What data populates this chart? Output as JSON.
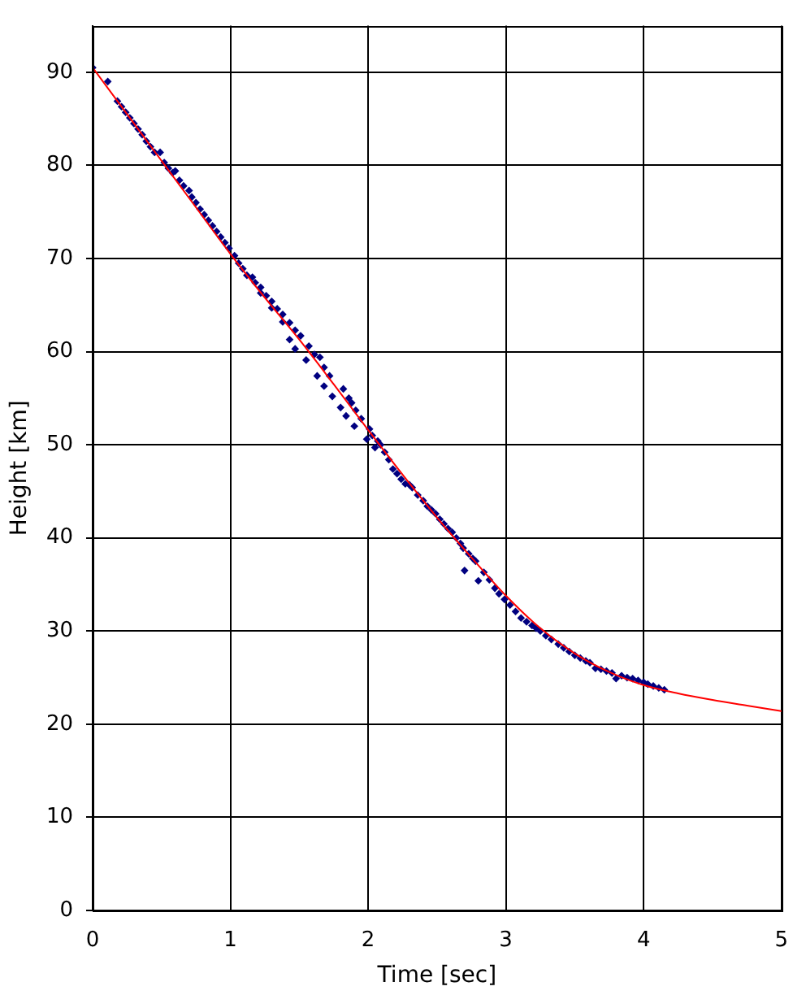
{
  "chart_data": {
    "type": "scatter",
    "xlabel": "Time [sec]",
    "ylabel": "Height [km]",
    "xlim": [
      0,
      5
    ],
    "xticks": [
      0,
      1,
      2,
      3,
      4,
      5
    ],
    "ylim": [
      0,
      95
    ],
    "yticks": [
      0,
      10,
      20,
      30,
      40,
      50,
      60,
      70,
      80,
      90
    ],
    "grid": true,
    "marker": "diamond",
    "series": [
      {
        "color": "#000080",
        "x": [
          0.0,
          0.11,
          0.18,
          0.21,
          0.24,
          0.27,
          0.3,
          0.33,
          0.36,
          0.39,
          0.42,
          0.45,
          0.49,
          0.52,
          0.55,
          0.58,
          0.6,
          0.63,
          0.66,
          0.7,
          0.72,
          0.75,
          0.78,
          0.81,
          0.84,
          0.87,
          0.9,
          0.93,
          0.96,
          0.99,
          1.03,
          1.06,
          1.09,
          1.12,
          1.16,
          1.18,
          1.22,
          1.22,
          1.26,
          1.3,
          1.3,
          1.34,
          1.38,
          1.38,
          1.43,
          1.43,
          1.47,
          1.47,
          1.51,
          1.55,
          1.57,
          1.61,
          1.63,
          1.65,
          1.68,
          1.68,
          1.72,
          1.74,
          1.82,
          1.8,
          1.84,
          1.86,
          1.88,
          1.9,
          1.91,
          1.95,
          1.99,
          2.01,
          2.03,
          2.05,
          2.07,
          2.09,
          2.12,
          2.15,
          2.18,
          2.21,
          2.24,
          2.27,
          2.3,
          2.32,
          2.36,
          2.4,
          2.43,
          2.46,
          2.49,
          2.52,
          2.55,
          2.58,
          2.61,
          2.64,
          2.67,
          2.69,
          2.7,
          2.73,
          2.76,
          2.78,
          2.8,
          2.84,
          2.88,
          2.92,
          2.95,
          2.99,
          3.03,
          3.07,
          3.11,
          3.15,
          3.19,
          3.22,
          3.25,
          3.29,
          3.33,
          3.38,
          3.42,
          3.46,
          3.5,
          3.54,
          3.58,
          3.61,
          3.65,
          3.69,
          3.73,
          3.77,
          3.8,
          3.84,
          3.88,
          3.92,
          3.96,
          4.0,
          4.03,
          4.07,
          4.11,
          4.15
        ],
        "values": [
          90.5,
          89.0,
          86.9,
          86.3,
          85.7,
          85.1,
          84.5,
          83.9,
          83.3,
          82.6,
          82.0,
          81.4,
          81.4,
          80.3,
          79.7,
          79.2,
          79.4,
          78.4,
          77.8,
          77.3,
          76.6,
          76.0,
          75.3,
          74.7,
          74.1,
          73.5,
          72.9,
          72.3,
          71.7,
          71.1,
          70.3,
          69.5,
          68.9,
          68.2,
          68.0,
          67.4,
          66.9,
          66.3,
          66.0,
          65.4,
          64.7,
          64.6,
          64.0,
          63.2,
          63.1,
          61.3,
          62.3,
          60.3,
          61.7,
          59.1,
          60.6,
          59.7,
          57.4,
          59.4,
          58.3,
          56.3,
          57.4,
          55.2,
          56.0,
          54.0,
          53.1,
          55.0,
          54.5,
          52.0,
          53.7,
          52.8,
          50.6,
          51.7,
          51.0,
          49.7,
          50.4,
          50.0,
          49.2,
          48.4,
          47.4,
          46.9,
          46.3,
          45.8,
          45.7,
          45.4,
          44.6,
          44.0,
          43.4,
          43.0,
          42.6,
          42.0,
          41.5,
          41.0,
          40.6,
          40.0,
          39.4,
          38.9,
          36.5,
          38.3,
          37.8,
          37.5,
          35.4,
          36.3,
          35.5,
          34.6,
          34.0,
          33.4,
          32.8,
          32.1,
          31.4,
          31.0,
          30.6,
          30.3,
          30.0,
          29.5,
          29.1,
          28.6,
          28.2,
          27.8,
          27.4,
          27.1,
          26.8,
          26.6,
          26.0,
          25.9,
          25.7,
          25.5,
          24.9,
          25.2,
          25.0,
          24.9,
          24.7,
          24.5,
          24.3,
          24.1,
          23.9,
          23.7
        ]
      },
      {
        "type": "line",
        "color": "#ff0000",
        "marker": "none",
        "x": [
          0,
          0.25,
          0.5,
          0.75,
          1,
          1.25,
          1.5,
          1.75,
          2,
          2.25,
          2.5,
          2.75,
          3,
          3.25,
          3.5,
          3.75,
          4,
          4.25,
          4.5,
          4.75,
          5
        ],
        "values": [
          90.5,
          85.5,
          80.5,
          75.5,
          70.5,
          65.8,
          61.3,
          56.5,
          51.6,
          46.8,
          42.2,
          37.9,
          33.8,
          30.3,
          27.6,
          25.6,
          24.2,
          23.3,
          22.6,
          22.0,
          21.4
        ]
      }
    ]
  }
}
